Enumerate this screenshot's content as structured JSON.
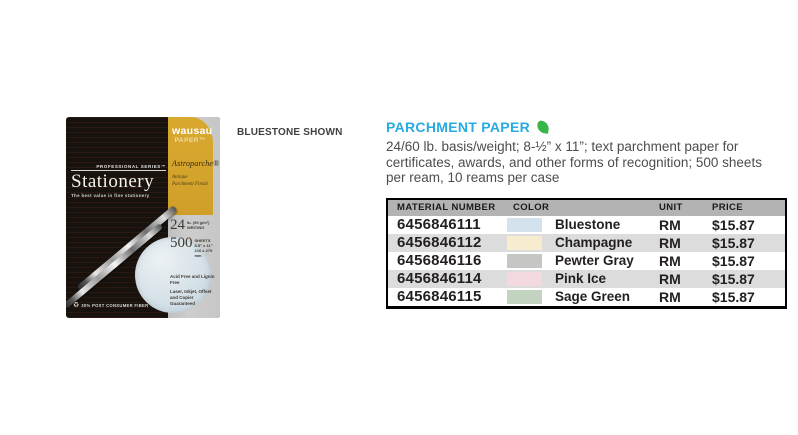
{
  "section": {
    "title": "PARCHMENT PAPER",
    "title_color": "#29ABE2",
    "leaf_color": "#39B54A",
    "description_lines": [
      "24/60 lb. basis/weight; 8-½” x 11”; text parchment paper for",
      "certificates, awards, and other forms of recognition; 500 sheets",
      "per ream, 10 reams per case"
    ]
  },
  "photo": {
    "caption": "BLUESTONE SHOWN",
    "brand_line1": "wausau",
    "brand_line2": "PAPER™",
    "gold_title": "Astroparche®",
    "gold_sub1": "Antique",
    "gold_sub2": "Parchment Finish",
    "series_label": "PROFESSIONAL SERIES™",
    "box_title": "Stationery",
    "box_tagline": "The best value in fine stationery",
    "weight_number": "24",
    "weight_note1": "lb. (90 g/m²)",
    "weight_note2": "WRITING",
    "sheets_number": "500",
    "sheets_note1": "SHEETS",
    "sheets_note2": "8.5” x 11”",
    "sheets_note3": "216 x 279 mm",
    "acid_note": "Acid Free and Lignin Free",
    "guarantee_note1": "Laser, Inkjet, Offset",
    "guarantee_note2": "and Copier Guaranteed",
    "recycle_glyph": "♻",
    "recycle_note": "30% POST CONSUMER FIBER"
  },
  "table": {
    "headers": [
      "MATERIAL NUMBER",
      "COLOR",
      "UNIT",
      "PRICE"
    ],
    "header_bg": "#B3B3B3",
    "alt_row_bg": "#DCDCDC",
    "rows": [
      {
        "material_number": "6456846111",
        "color_name": "Bluestone",
        "swatch": "#D3E2EC",
        "unit": "RM",
        "price": "$15.87"
      },
      {
        "material_number": "6456846112",
        "color_name": "Champagne",
        "swatch": "#F8ECCF",
        "unit": "RM",
        "price": "$15.87"
      },
      {
        "material_number": "6456846116",
        "color_name": "Pewter Gray",
        "swatch": "#C6C6C4",
        "unit": "RM",
        "price": "$15.87"
      },
      {
        "material_number": "6456846114",
        "color_name": "Pink Ice",
        "swatch": "#F3D9DE",
        "unit": "RM",
        "price": "$15.87"
      },
      {
        "material_number": "6456846115",
        "color_name": "Sage Green",
        "swatch": "#C2D4BF",
        "unit": "RM",
        "price": "$15.87"
      }
    ]
  }
}
